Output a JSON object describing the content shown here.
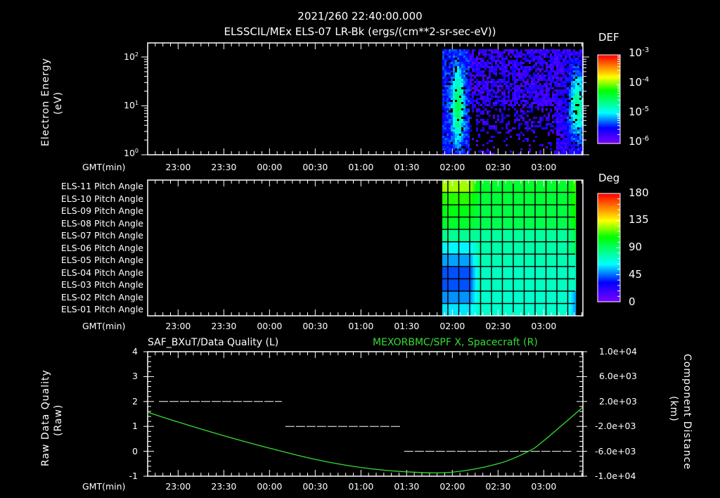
{
  "header": {
    "timestamp": "2021/260 22:40:00.000",
    "subtitle": "ELSSCIL/MEx ELS-07 LR-Bk  (ergs/(cm**2-sr-sec-eV))"
  },
  "time_axis": {
    "label": "GMT(min)",
    "ticks": [
      "23:00",
      "23:30",
      "00:00",
      "00:30",
      "01:00",
      "01:30",
      "02:00",
      "02:30",
      "03:00"
    ]
  },
  "panel1": {
    "ylabel_line1": "Electron Energy",
    "ylabel_line2": "(eV)",
    "yticks": [
      "10",
      "10",
      "10"
    ],
    "ytick_exp": [
      "2",
      "1",
      "0"
    ],
    "colorbar": {
      "title": "DEF",
      "labels": [
        "10",
        "10",
        "10",
        "10"
      ],
      "exps": [
        "-3",
        "-4",
        "-5",
        "-6"
      ]
    }
  },
  "panel2": {
    "rows": [
      "ELS-11 Pitch Angle",
      "ELS-10 Pitch Angle",
      "ELS-09 Pitch Angle",
      "ELS-08 Pitch Angle",
      "ELS-07 Pitch Angle",
      "ELS-06 Pitch Angle",
      "ELS-05 Pitch Angle",
      "ELS-04 Pitch Angle",
      "ELS-03 Pitch Angle",
      "ELS-02 Pitch Angle",
      "ELS-01 Pitch Angle"
    ],
    "colorbar": {
      "title": "Deg",
      "labels": [
        "180",
        "135",
        "90",
        "45",
        "0"
      ]
    }
  },
  "panel3": {
    "left_title": "SAF_BXuT/Data Quality (L)",
    "right_title": "MEXORBMC/SPF X, Spacecraft (R)",
    "left_ylabel_line1": "Raw Data Quality",
    "left_ylabel_line2": "(Raw)",
    "left_yticks": [
      "4",
      "3",
      "2",
      "1",
      "0",
      "-1"
    ],
    "right_yticks": [
      "1.0e+04",
      "6.0e+03",
      "2.0e+03",
      "-2.0e+03",
      "-6.0e+03",
      "-1.0e+04"
    ],
    "right_ylabel_line1": "Component Distance",
    "right_ylabel_line2": "(km)"
  },
  "colors": {
    "background": "#000000",
    "axes": "#ffffff",
    "orbit_line": "#33dd33",
    "quality_line": "#ffffff"
  },
  "chart_data": [
    {
      "type": "heatmap",
      "title": "ELSSCIL/MEx ELS-07 LR-Bk (ergs/(cm**2-sr-sec-eV))",
      "xlabel": "GMT(min)",
      "ylabel": "Electron Energy (eV)",
      "yscale": "log",
      "ylim": [
        1,
        200
      ],
      "xlim": [
        "22:40",
        "03:26"
      ],
      "x_ticks": [
        "23:00",
        "23:30",
        "00:00",
        "00:30",
        "01:00",
        "01:30",
        "02:00",
        "02:30",
        "03:00"
      ],
      "data_start": "01:52",
      "colorbar": {
        "label": "DEF",
        "scale": "log",
        "range": [
          1e-06,
          0.001
        ]
      },
      "features": [
        {
          "time": "01:55-02:02",
          "energy_eV": "2-60",
          "level": "~2e-5"
        },
        {
          "time": "03:15-03:25",
          "energy_eV": "3-40",
          "level": "~2e-5"
        },
        {
          "time": "02:05-03:15",
          "energy_eV": "5-150",
          "level": "~2e-6 sparse"
        }
      ]
    },
    {
      "type": "heatmap",
      "title": "ELS Pitch Angle",
      "xlabel": "GMT(min)",
      "rows": [
        "ELS-11",
        "ELS-10",
        "ELS-09",
        "ELS-08",
        "ELS-07",
        "ELS-06",
        "ELS-05",
        "ELS-04",
        "ELS-03",
        "ELS-02",
        "ELS-01"
      ],
      "colorbar": {
        "label": "Deg",
        "range": [
          0,
          180
        ]
      },
      "data_start": "01:52",
      "data_end": "03:18",
      "row_values_early_deg": [
        125,
        112,
        105,
        100,
        82,
        62,
        52,
        42,
        42,
        50,
        60
      ],
      "row_values_late_deg": [
        100,
        98,
        96,
        94,
        80,
        78,
        76,
        74,
        74,
        72,
        72
      ]
    },
    {
      "type": "line",
      "title": "SAF_BXuT/Data Quality (L) ; MEXORBMC/SPF X, Spacecraft (R)",
      "xlabel": "GMT(min)",
      "ylabel_left": "Raw Data Quality (Raw)",
      "ylabel_right": "Component Distance (km)",
      "ylim_left": [
        -1,
        4
      ],
      "ylim_right": [
        -10000,
        10000
      ],
      "series": [
        {
          "name": "Data Quality",
          "axis": "left",
          "color": "#ffffff",
          "segments": [
            {
              "start": "22:46",
              "end": "00:09",
              "value": 2
            },
            {
              "start": "00:09",
              "end": "01:27",
              "value": 1
            },
            {
              "start": "01:27",
              "end": "03:19",
              "value": 0
            }
          ]
        },
        {
          "name": "SPF X",
          "axis": "right",
          "color": "#33dd33",
          "x": [
            "22:40",
            "23:00",
            "23:30",
            "00:00",
            "00:30",
            "01:00",
            "01:30",
            "02:00",
            "02:30",
            "02:50",
            "03:00",
            "03:26"
          ],
          "values": [
            280,
            -1300,
            -3500,
            -5500,
            -7300,
            -8600,
            -9300,
            -9350,
            -8000,
            -6000,
            -4300,
            1000
          ]
        }
      ]
    }
  ]
}
